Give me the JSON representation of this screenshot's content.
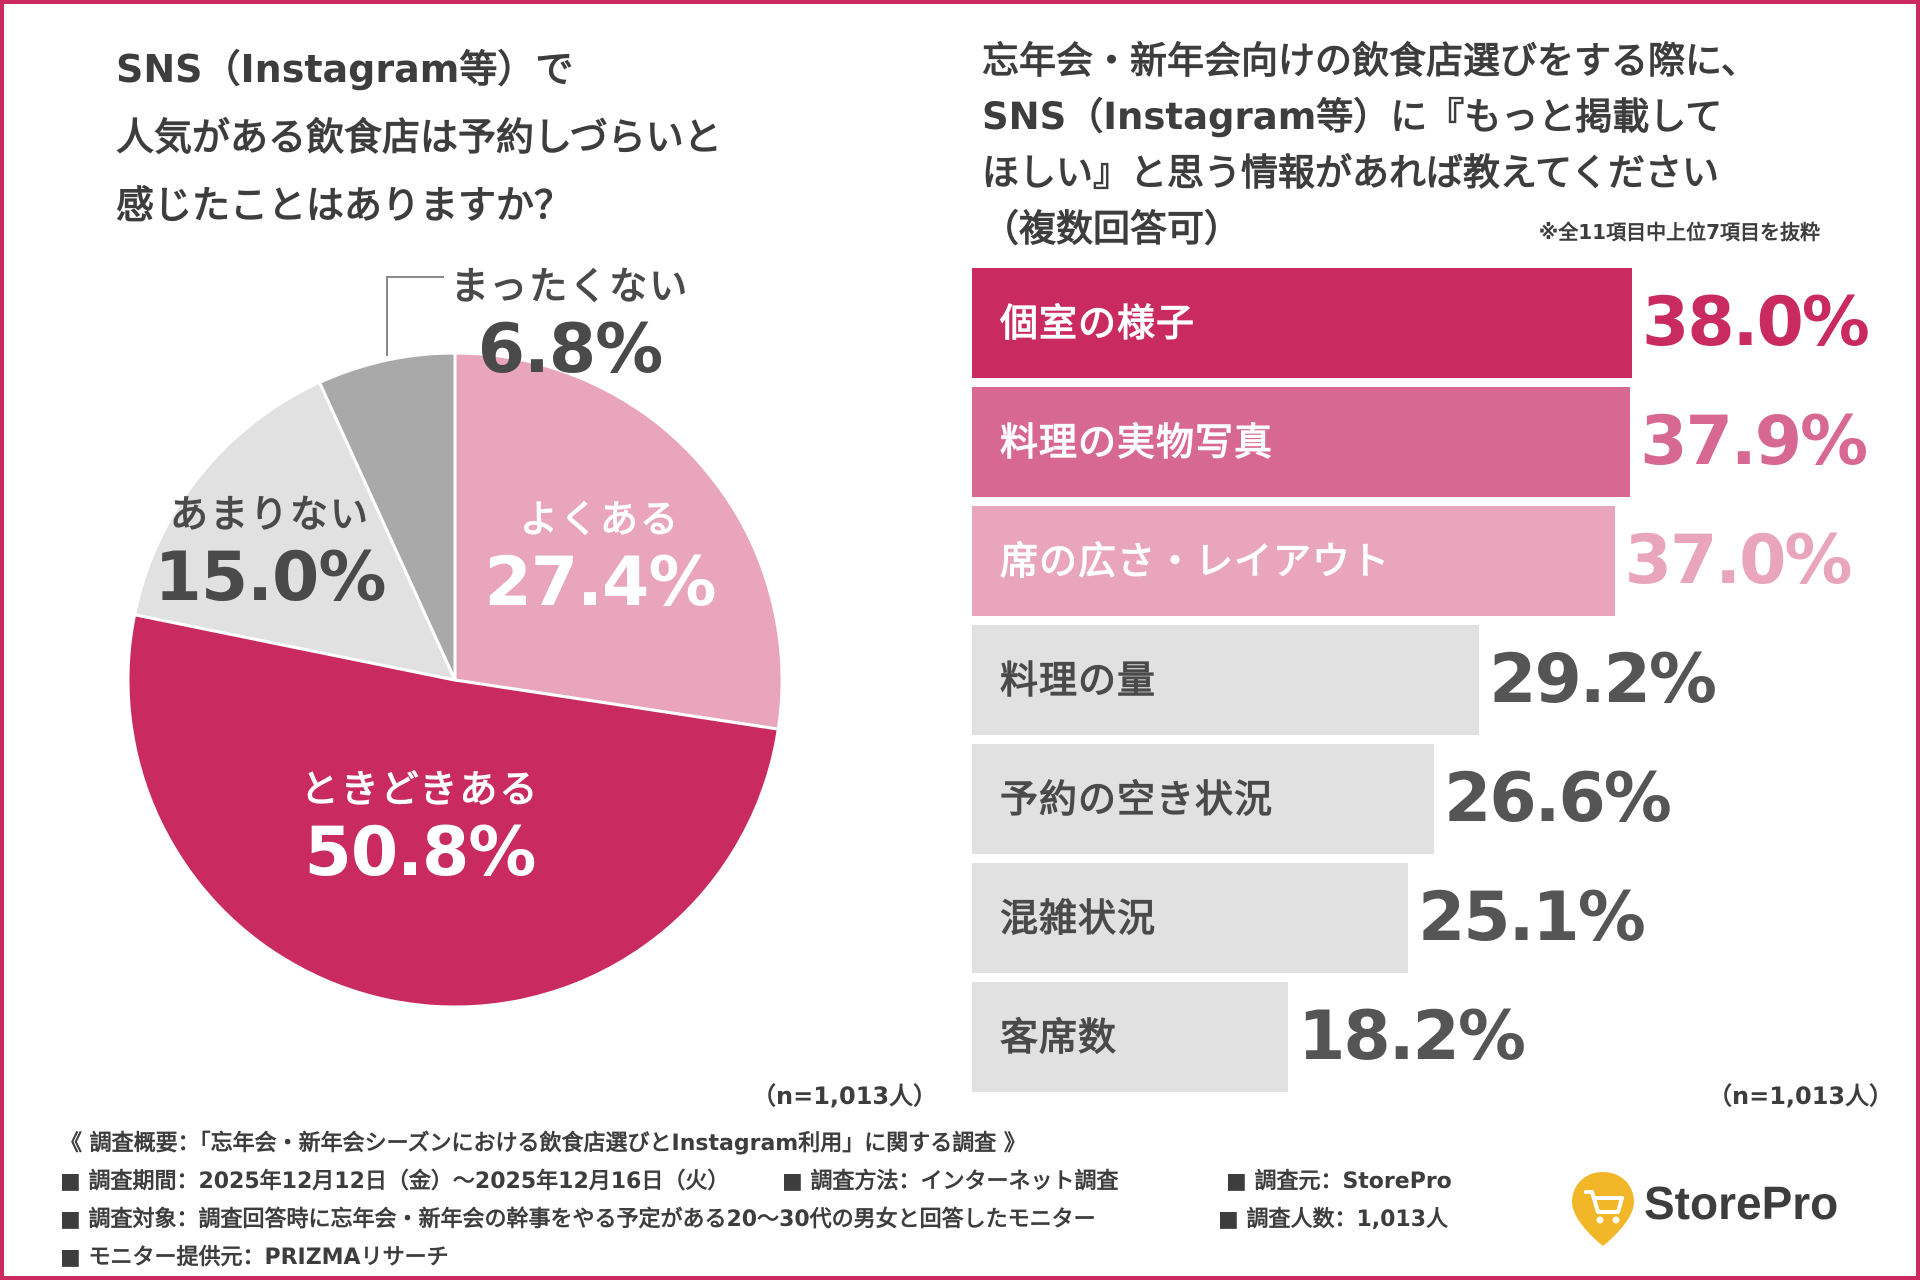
{
  "colors": {
    "border": "#c92a60",
    "magenta": "#c92a60",
    "rose": "#d76891",
    "pink": "#e8a5bc",
    "light_gray": "#e1e1e1",
    "mid_gray": "#a9a9a9",
    "value_gray": "#555555"
  },
  "chart_data": [
    {
      "type": "pie",
      "title_lines": [
        "SNS（Instagram等）で",
        "人気がある飲食店は予約しづらいと",
        "感じたことはありますか？"
      ],
      "slices": [
        {
          "label": "よくある",
          "value": 27.4,
          "value_label": "27.4%",
          "color": "#e8a5bc",
          "label_style": "light"
        },
        {
          "label": "ときどきある",
          "value": 50.8,
          "value_label": "50.8%",
          "color": "#c92a60",
          "label_style": "light"
        },
        {
          "label": "あまりない",
          "value": 15.0,
          "value_label": "15.0%",
          "color": "#e1e1e1",
          "label_style": "dark"
        },
        {
          "label": "まったくない",
          "value": 6.8,
          "value_label": "6.8%",
          "color": "#a9a9a9",
          "label_style": "dark"
        }
      ],
      "start": "12 o'clock",
      "direction": "clockwise",
      "sample_note": "（n=1,013人）"
    },
    {
      "type": "bar",
      "orientation": "horizontal",
      "title_lines": [
        "忘年会・新年会向けの飲食店選びをする際に、",
        "SNS（Instagram等）に『もっと掲載して",
        "ほしい』と思う情報があれば教えてください",
        "（複数回答可）"
      ],
      "note": "※全11項目中上位7項目を抜粋",
      "categories": [
        "個室の様子",
        "料理の実物写真",
        "席の広さ・レイアウト",
        "料理の量",
        "予約の空き状況",
        "混雑状況",
        "客席数"
      ],
      "values": [
        38.0,
        37.9,
        37.0,
        29.2,
        26.6,
        25.1,
        18.2
      ],
      "value_labels": [
        "38.0%",
        "37.9%",
        "37.0%",
        "29.2%",
        "26.6%",
        "25.1%",
        "18.2%"
      ],
      "bar_colors": [
        "#c92a60",
        "#d76891",
        "#e8a5bc",
        "#e1e1e1",
        "#e1e1e1",
        "#e1e1e1",
        "#e1e1e1"
      ],
      "label_colors": [
        "#ffffff",
        "#ffffff",
        "#ffffff",
        "#4a4a4a",
        "#4a4a4a",
        "#4a4a4a",
        "#4a4a4a"
      ],
      "value_colors": [
        "#c92a60",
        "#d76891",
        "#e8a5bc",
        "#555555",
        "#555555",
        "#555555",
        "#555555"
      ],
      "xlim": [
        0,
        38.0
      ],
      "sample_note": "（n=1,013人）"
    }
  ],
  "survey": {
    "title": "《 調査概要：「忘年会・新年会シーズンにおける飲食店選びとInstagram利用」に関する調査 》",
    "period": "■ 調査期間：2025年12月12日（金）〜2025年12月16日（火）",
    "method": "■ 調査方法：インターネット調査",
    "source": "■ 調査元：StorePro",
    "target": "■ 調査対象：調査回答時に忘年会・新年会の幹事をやる予定がある20〜30代の男女と回答したモニター",
    "count": "■ 調査人数：1,013人",
    "provider": "■ モニター提供元：PRIZMAリサーチ"
  },
  "logo": {
    "text": "StorePro",
    "icon": "shopping-cart-pin-icon"
  }
}
